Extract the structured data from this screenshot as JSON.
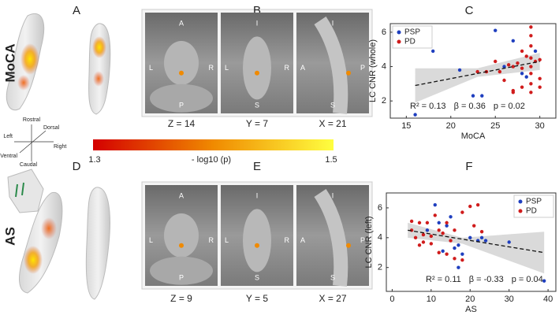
{
  "panel_letters": [
    "A",
    "B",
    "C",
    "D",
    "E",
    "F"
  ],
  "row_labels": [
    "MoCA",
    "AS"
  ],
  "orientation": [
    "Rostral",
    "Dorsal",
    "Left",
    "Right",
    "Ventral",
    "Caudal"
  ],
  "colorbar": {
    "min_label": "1.3",
    "title": "- log10 (p)",
    "max_label": "1.5"
  },
  "slices": [
    {
      "caption": "Z = 14",
      "labels": [
        "A",
        "L",
        "R",
        "P"
      ]
    },
    {
      "caption": "Y = 7",
      "labels": [
        "I",
        "L",
        "R",
        "S"
      ]
    },
    {
      "caption": "X = 21",
      "labels": [
        "I",
        "A",
        "P",
        "S"
      ]
    },
    {
      "caption": "Z = 9",
      "labels": [
        "A",
        "L",
        "R",
        "P"
      ]
    },
    {
      "caption": "Y = 5",
      "labels": [
        "I",
        "L",
        "R",
        "S"
      ]
    },
    {
      "caption": "X = 27",
      "labels": [
        "I",
        "A",
        "P",
        "S"
      ]
    }
  ],
  "chart_data": [
    {
      "type": "scatter",
      "xlabel": "MoCA",
      "ylabel": "LC CNR (whole)",
      "xlim": [
        13.2,
        31.8
      ],
      "ylim": [
        1,
        6.5
      ],
      "xticks": [
        15,
        20,
        25,
        30
      ],
      "yticks": [
        2,
        4,
        6
      ],
      "legend": "upper left",
      "annotation": [
        "R² = 0.13",
        "β = 0.36",
        "p = 0.02"
      ],
      "series": [
        {
          "name": "PSP",
          "color": "#1f3fbf",
          "x": [
            16,
            18,
            21,
            22.5,
            23.5,
            25,
            27,
            26,
            28,
            28.5,
            29.5
          ],
          "y": [
            1.2,
            4.9,
            3.8,
            2.3,
            2.3,
            6.1,
            5.5,
            4.0,
            3.6,
            3.4,
            4.9
          ]
        },
        {
          "name": "PD",
          "color": "#d01c1c",
          "x": [
            23,
            24,
            25,
            25.5,
            26,
            26.5,
            27,
            27,
            27,
            27.5,
            28,
            28,
            28,
            29,
            29,
            29,
            29,
            29,
            29,
            29,
            29,
            29.5,
            30,
            30,
            30,
            28.5
          ],
          "y": [
            3.7,
            3.7,
            4.3,
            3.7,
            3.2,
            4.1,
            2.6,
            2.5,
            4.0,
            4.2,
            4.9,
            3.9,
            2.8,
            6.3,
            5.8,
            5.2,
            4.5,
            4.0,
            3.6,
            3.0,
            2.5,
            4.3,
            4.4,
            3.3,
            2.8,
            4.6
          ]
        }
      ],
      "trend": {
        "x": [
          16,
          30
        ],
        "y": [
          2.9,
          4.3
        ]
      },
      "ci": {
        "x": [
          16,
          23,
          30
        ],
        "lower": [
          1.9,
          3.4,
          3.8
        ],
        "upper": [
          3.9,
          3.9,
          4.8
        ]
      }
    },
    {
      "type": "scatter",
      "xlabel": "AS",
      "ylabel": "LC CNR (left)",
      "xlim": [
        -1.5,
        42
      ],
      "ylim": [
        0.4,
        7
      ],
      "xticks": [
        0,
        10,
        20,
        30,
        40
      ],
      "yticks": [
        2,
        4,
        6
      ],
      "legend": "upper right",
      "annotation": [
        "R² = 0.11",
        "β = -0.33",
        "p = 0.04"
      ],
      "series": [
        {
          "name": "PSP",
          "color": "#1f3fbf",
          "x": [
            9,
            11,
            12,
            14,
            15,
            16,
            17,
            18,
            20,
            22,
            23,
            24,
            30,
            39,
            13,
            17
          ],
          "y": [
            4.5,
            6.2,
            5.0,
            4.8,
            5.4,
            3.3,
            3.5,
            2.9,
            4.0,
            3.8,
            4.0,
            3.8,
            3.7,
            1.1,
            3.1,
            2.0
          ]
        },
        {
          "name": "PD",
          "color": "#d01c1c",
          "x": [
            5,
            5,
            6,
            7,
            7,
            8,
            9,
            10,
            10,
            11,
            12,
            13,
            14,
            15,
            16,
            16,
            18,
            20,
            21,
            22,
            23,
            18,
            12,
            8,
            14
          ],
          "y": [
            5.1,
            4.5,
            4.0,
            5.0,
            3.5,
            4.2,
            5.0,
            3.6,
            4.1,
            5.5,
            3.0,
            4.3,
            5.0,
            3.8,
            2.6,
            4.5,
            5.7,
            6.1,
            4.8,
            6.2,
            4.4,
            2.5,
            4.5,
            3.7,
            2.9
          ]
        }
      ],
      "trend": {
        "x": [
          4,
          39
        ],
        "y": [
          4.5,
          3.0
        ]
      },
      "ci": {
        "x": [
          4,
          18,
          39
        ],
        "lower": [
          4.0,
          3.6,
          1.6
        ],
        "upper": [
          5.0,
          4.0,
          4.4
        ]
      }
    }
  ]
}
